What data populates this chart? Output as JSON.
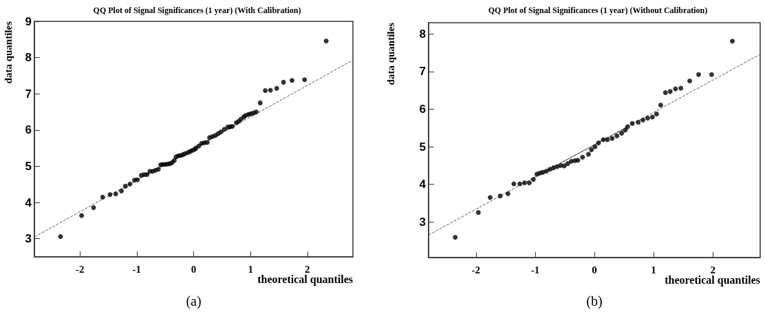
{
  "chart_data": [
    {
      "type": "scatter",
      "title": "QQ Plot of Signal Significances (1 year) (With Calibration)",
      "xlabel": "theoretical quantiles",
      "ylabel": "data quantiles",
      "annotations": [
        "(a)"
      ],
      "xlim": [
        -2.8,
        2.8
      ],
      "xticks": [
        -2,
        -1,
        0,
        1,
        2
      ],
      "ylim": [
        2.5,
        9
      ],
      "yticks": [
        3,
        4,
        5,
        6,
        7,
        8,
        9
      ],
      "grid": false,
      "series": [
        {
          "marker": "circle",
          "color": "#000000",
          "x": [
            -2.34,
            -1.97,
            -1.76,
            -1.6,
            -1.47,
            -1.37,
            -1.27,
            -1.2,
            -1.12,
            -1.04,
            -0.99,
            -0.92,
            -0.87,
            -0.82,
            -0.77,
            -0.72,
            -0.67,
            -0.62,
            -0.58,
            -0.54,
            -0.5,
            -0.46,
            -0.42,
            -0.38,
            -0.34,
            -0.31,
            -0.27,
            -0.23,
            -0.19,
            -0.15,
            -0.1,
            -0.06,
            -0.02,
            0.02,
            0.04,
            0.09,
            0.14,
            0.19,
            0.24,
            0.28,
            0.33,
            0.38,
            0.43,
            0.48,
            0.54,
            0.6,
            0.64,
            0.68,
            0.75,
            0.79,
            0.83,
            0.88,
            0.91,
            0.96,
            1.0,
            1.05,
            1.1,
            1.17,
            1.26,
            1.35,
            1.46,
            1.58,
            1.73,
            1.95,
            2.33
          ],
          "values": [
            3.06,
            3.64,
            3.86,
            4.15,
            4.22,
            4.24,
            4.32,
            4.45,
            4.51,
            4.62,
            4.63,
            4.75,
            4.77,
            4.77,
            4.86,
            4.86,
            4.89,
            4.92,
            5.04,
            5.05,
            5.05,
            5.06,
            5.07,
            5.1,
            5.16,
            5.26,
            5.29,
            5.3,
            5.32,
            5.35,
            5.38,
            5.41,
            5.44,
            5.47,
            5.5,
            5.56,
            5.63,
            5.65,
            5.66,
            5.79,
            5.82,
            5.85,
            5.9,
            5.95,
            6.02,
            6.08,
            6.09,
            6.1,
            6.2,
            6.24,
            6.3,
            6.36,
            6.4,
            6.43,
            6.45,
            6.47,
            6.5,
            6.75,
            7.09,
            7.1,
            7.15,
            7.32,
            7.37,
            7.39,
            8.46
          ]
        },
        {
          "type": "line",
          "marker": "none",
          "line_style": "dashed",
          "color": "#555555",
          "x": [
            -2.8,
            2.8
          ],
          "values": [
            3.05,
            7.93
          ]
        }
      ]
    },
    {
      "type": "scatter",
      "title": "QQ Plot of Signal Significances (1 year) (Without Calibration)",
      "xlabel": "theoretical quantiles",
      "ylabel": "data quantiles",
      "annotations": [
        "(b)"
      ],
      "xlim": [
        -2.8,
        2.8
      ],
      "xticks": [
        -2,
        -1,
        0,
        1,
        2
      ],
      "ylim": [
        2.05,
        8.3
      ],
      "yticks": [
        3,
        4,
        5,
        6,
        7,
        8
      ],
      "grid": false,
      "series": [
        {
          "marker": "circle",
          "color": "#000000",
          "x": [
            -2.35,
            -1.96,
            -1.76,
            -1.59,
            -1.46,
            -1.36,
            -1.26,
            -1.18,
            -1.1,
            -1.03,
            -0.97,
            -0.92,
            -0.87,
            -0.81,
            -0.75,
            -0.69,
            -0.63,
            -0.57,
            -0.51,
            -0.45,
            -0.39,
            -0.33,
            -0.28,
            -0.2,
            -0.1,
            -0.05,
            0.01,
            0.07,
            0.15,
            0.22,
            0.3,
            0.38,
            0.46,
            0.52,
            0.56,
            0.64,
            0.74,
            0.82,
            0.9,
            0.98,
            1.05,
            1.12,
            1.2,
            1.28,
            1.37,
            1.46,
            1.61,
            1.76,
            1.98,
            2.33
          ],
          "values": [
            2.59,
            3.25,
            3.65,
            3.69,
            3.75,
            4.01,
            4.01,
            4.04,
            4.04,
            4.13,
            4.27,
            4.3,
            4.32,
            4.35,
            4.4,
            4.44,
            4.47,
            4.5,
            4.49,
            4.55,
            4.61,
            4.63,
            4.64,
            4.72,
            4.8,
            4.92,
            5.0,
            5.1,
            5.19,
            5.19,
            5.22,
            5.29,
            5.36,
            5.44,
            5.53,
            5.62,
            5.65,
            5.71,
            5.76,
            5.79,
            5.87,
            6.11,
            6.44,
            6.47,
            6.54,
            6.56,
            6.75,
            6.92,
            6.92,
            7.81
          ]
        },
        {
          "type": "line",
          "marker": "none",
          "line_style": "dashed",
          "color": "#555555",
          "x": [
            -2.8,
            2.8
          ],
          "values": [
            2.65,
            7.46
          ]
        },
        {
          "type": "line",
          "marker": "none",
          "line_style": "solid",
          "color": "#555555",
          "x": [
            -0.59,
            0.5
          ],
          "values": [
            4.55,
            5.47
          ]
        }
      ]
    }
  ]
}
